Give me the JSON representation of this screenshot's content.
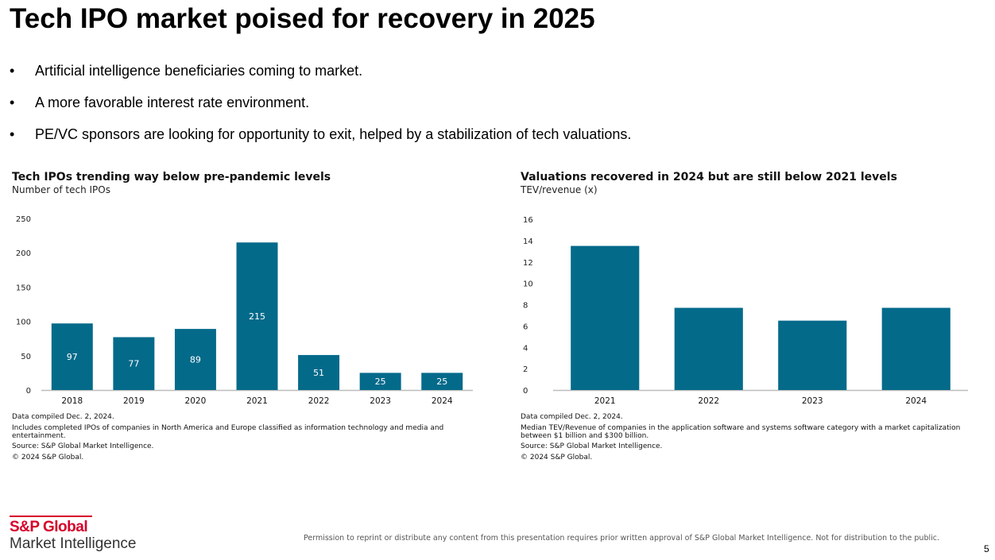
{
  "slide": {
    "title": "Tech IPO market poised for recovery in 2025",
    "bullets": [
      "Artificial intelligence beneficiaries coming to market.",
      "A more favorable interest rate environment.",
      "PE/VC sponsors are looking for opportunity to exit, helped by a stabilization of tech valuations."
    ],
    "bullet_glyph": "•",
    "page_number": "5"
  },
  "colors": {
    "bar": "#046a8a",
    "axis": "#bdbdbd",
    "brand_red": "#d6002a",
    "label_on_bar": "#ffffff"
  },
  "chart_data": [
    {
      "type": "bar",
      "title": "Tech IPOs trending way below pre-pandemic levels",
      "subtitle": "Number of tech IPOs",
      "categories": [
        "2018",
        "2019",
        "2020",
        "2021",
        "2022",
        "2023",
        "2024"
      ],
      "values": [
        97,
        77,
        89,
        215,
        51,
        25,
        25
      ],
      "data_labels": true,
      "ylim": [
        0,
        250
      ],
      "yticks": [
        0,
        50,
        100,
        150,
        200,
        250
      ],
      "grid": false,
      "notes": [
        "Data compiled Dec. 2, 2024.",
        "Includes completed IPOs of companies in North America and Europe classified as information technology and media and entertainment.",
        "Source: S&P Global Market Intelligence.",
        "© 2024 S&P Global."
      ]
    },
    {
      "type": "bar",
      "title": "Valuations recovered in 2024 but are still below 2021 levels",
      "subtitle": "TEV/revenue (x)",
      "categories": [
        "2021",
        "2022",
        "2023",
        "2024"
      ],
      "values": [
        13.5,
        7.7,
        6.5,
        7.7
      ],
      "data_labels": false,
      "ylim": [
        0,
        16
      ],
      "yticks": [
        0,
        2,
        4,
        6,
        8,
        10,
        12,
        14,
        16
      ],
      "grid": false,
      "notes": [
        "Data compiled Dec. 2, 2024.",
        "Median TEV/Revenue of companies in the application software and systems software category with a market capitalization between $1 billion and $300 billion.",
        "Source: S&P Global Market Intelligence.",
        "© 2024 S&P Global."
      ]
    }
  ],
  "footer": {
    "logo_line1": "S&P Global",
    "logo_line2": "Market Intelligence",
    "disclaimer": "Permission to reprint or distribute any content from this presentation requires prior written approval of S&P Global Market Intelligence. Not for distribution to the public."
  }
}
